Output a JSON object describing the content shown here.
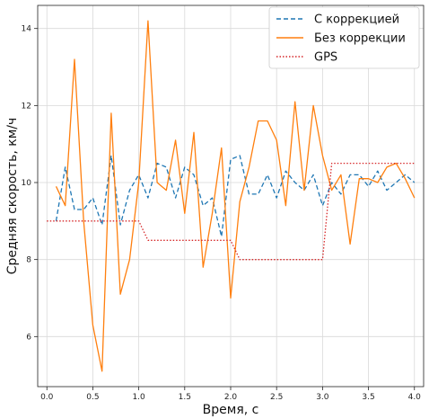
{
  "chart_data": {
    "type": "line",
    "xlabel": "Время, с",
    "ylabel": "Средняя скорость, км/ч",
    "xlim": [
      -0.1,
      4.1
    ],
    "ylim": [
      4.7,
      14.6
    ],
    "xticks": [
      0.0,
      0.5,
      1.0,
      1.5,
      2.0,
      2.5,
      3.0,
      3.5,
      4.0
    ],
    "xtick_labels": [
      "0.0",
      "0.5",
      "1.0",
      "1.5",
      "2.0",
      "2.5",
      "3.0",
      "3.5",
      "4.0"
    ],
    "yticks": [
      6,
      8,
      10,
      12,
      14
    ],
    "ytick_labels": [
      "6",
      "8",
      "10",
      "12",
      "14"
    ],
    "grid": true,
    "legend_position": "top-right",
    "series": [
      {
        "name": "С коррекцией",
        "color": "#1f77b4",
        "style": "dashed",
        "x": [
          0.1,
          0.2,
          0.3,
          0.4,
          0.5,
          0.6,
          0.7,
          0.8,
          0.9,
          1.0,
          1.1,
          1.2,
          1.3,
          1.4,
          1.5,
          1.6,
          1.7,
          1.8,
          1.9,
          2.0,
          2.1,
          2.2,
          2.3,
          2.4,
          2.5,
          2.6,
          2.7,
          2.8,
          2.9,
          3.0,
          3.1,
          3.2,
          3.3,
          3.4,
          3.5,
          3.6,
          3.7,
          3.8,
          3.9,
          4.0
        ],
        "y": [
          9.0,
          10.4,
          9.3,
          9.3,
          9.6,
          8.9,
          10.7,
          8.9,
          9.8,
          10.2,
          9.6,
          10.5,
          10.4,
          9.6,
          10.4,
          10.2,
          9.4,
          9.6,
          8.6,
          10.6,
          10.7,
          9.7,
          9.7,
          10.2,
          9.6,
          10.3,
          10.0,
          9.8,
          10.2,
          9.4,
          10.0,
          9.7,
          10.2,
          10.2,
          9.9,
          10.3,
          9.8,
          10.0,
          10.2,
          10.0
        ]
      },
      {
        "name": "Без коррекции",
        "color": "#ff7f0e",
        "style": "solid",
        "x": [
          0.1,
          0.2,
          0.3,
          0.4,
          0.5,
          0.6,
          0.7,
          0.8,
          0.9,
          1.0,
          1.1,
          1.2,
          1.3,
          1.4,
          1.5,
          1.6,
          1.7,
          1.8,
          1.9,
          2.0,
          2.1,
          2.2,
          2.3,
          2.4,
          2.5,
          2.6,
          2.7,
          2.8,
          2.9,
          3.0,
          3.1,
          3.2,
          3.3,
          3.4,
          3.5,
          3.6,
          3.7,
          3.8,
          3.9,
          4.0
        ],
        "y": [
          9.9,
          9.4,
          13.2,
          9.0,
          6.3,
          5.1,
          11.8,
          7.1,
          8.0,
          10.0,
          14.2,
          10.0,
          9.8,
          11.1,
          9.2,
          11.3,
          7.8,
          9.2,
          10.9,
          7.0,
          9.5,
          10.4,
          11.6,
          11.6,
          11.1,
          9.4,
          12.1,
          9.8,
          12.0,
          10.7,
          9.8,
          10.2,
          8.4,
          10.1,
          10.1,
          10.0,
          10.4,
          10.5,
          10.1,
          9.6
        ]
      },
      {
        "name": "GPS",
        "color": "#d62728",
        "style": "dotted",
        "x": [
          0.0,
          1.0,
          1.1,
          2.0,
          2.1,
          3.0,
          3.1,
          4.0
        ],
        "y": [
          9.0,
          9.0,
          8.5,
          8.5,
          8.0,
          8.0,
          10.5,
          10.5
        ]
      }
    ]
  }
}
